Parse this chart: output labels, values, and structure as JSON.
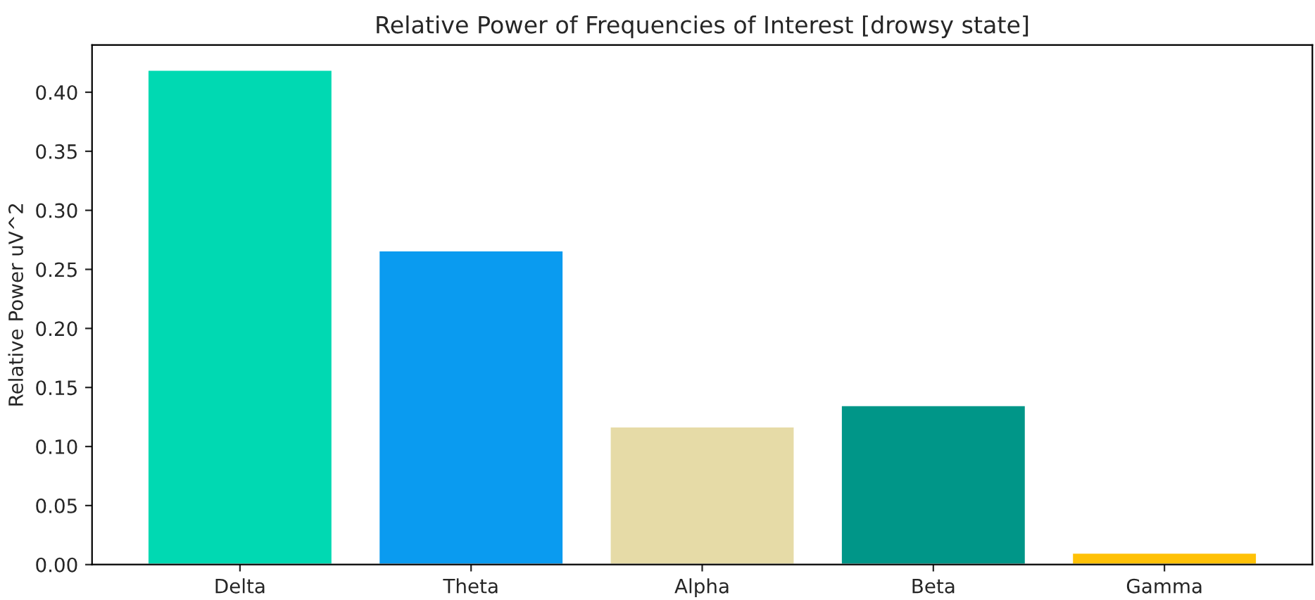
{
  "chart_data": {
    "type": "bar",
    "title": "Relative Power of Frequencies of Interest [drowsy state]",
    "ylabel": "Relative Power uV^2",
    "categories": [
      "Delta",
      "Theta",
      "Alpha",
      "Beta",
      "Gamma"
    ],
    "values": [
      0.419,
      0.266,
      0.117,
      0.135,
      0.01
    ],
    "colors": [
      "#00d9b2",
      "#0a9bf0",
      "#e6dba7",
      "#009688",
      "#ffc107"
    ],
    "ylim": [
      0,
      0.44
    ],
    "yticks": [
      {
        "value": 0,
        "label": "0.00"
      },
      {
        "value": 0.05,
        "label": "0.05"
      },
      {
        "value": 0.1,
        "label": "0.10"
      },
      {
        "value": 0.15,
        "label": "0.15"
      },
      {
        "value": 0.2,
        "label": "0.20"
      },
      {
        "value": 0.25,
        "label": "0.25"
      },
      {
        "value": 0.3,
        "label": "0.30"
      },
      {
        "value": 0.35,
        "label": "0.35"
      },
      {
        "value": 0.4,
        "label": "0.40"
      }
    ],
    "grid": false
  }
}
